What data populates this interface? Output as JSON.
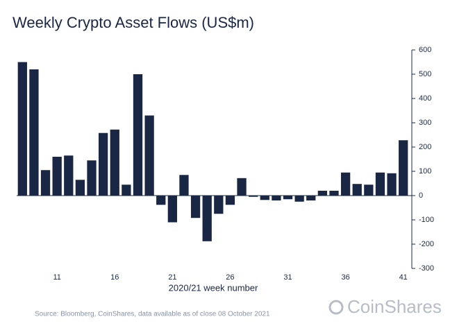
{
  "chart_data": {
    "type": "bar",
    "title": "Weekly Crypto Asset Flows (US$m)",
    "x_label": "2020/21 week number",
    "source": "Source: Bloomberg, CoinShares, data available as of close 08 October 2021",
    "logo": "CoinShares",
    "categories": [
      null,
      null,
      null,
      "11",
      null,
      null,
      null,
      null,
      "16",
      null,
      null,
      null,
      null,
      "21",
      null,
      null,
      null,
      null,
      "26",
      null,
      null,
      null,
      null,
      "31",
      null,
      null,
      null,
      null,
      "36",
      null,
      null,
      null,
      null,
      "41"
    ],
    "values": [
      550,
      520,
      105,
      160,
      165,
      65,
      145,
      258,
      272,
      45,
      500,
      330,
      -38,
      -110,
      85,
      -92,
      -188,
      -75,
      -38,
      72,
      -5,
      -18,
      -20,
      -15,
      -25,
      -20,
      20,
      20,
      95,
      48,
      45,
      95,
      92,
      228
    ],
    "color": "#1a2744",
    "ylim": [
      -300,
      600
    ],
    "yticks": [
      600,
      500,
      400,
      300,
      200,
      100,
      0,
      -100,
      -200,
      -300
    ]
  }
}
